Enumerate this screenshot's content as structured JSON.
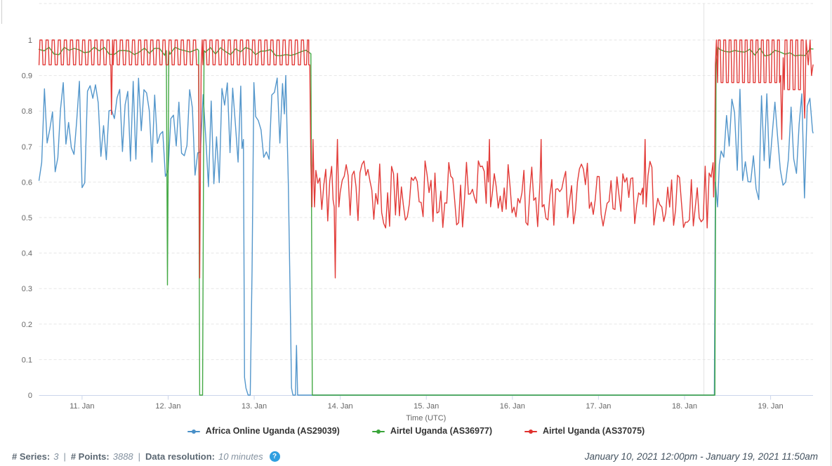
{
  "colors": {
    "blue_series": "#4a90c8",
    "green_series": "#3aa43a",
    "red_series": "#e0312e",
    "axis_line": "#ccd6eb",
    "gridline": "#e6e6e6",
    "tick_text": "#666666",
    "legend_text": "#333333",
    "footer_label": "#5c6873",
    "footer_value": "#8492a0",
    "footer_date": "#43525f",
    "help_icon_bg": "#2f9fe0",
    "divider": "#cfcfcf"
  },
  "footer": {
    "series_label": "# Series:",
    "series_value": "3",
    "points_label": "# Points:",
    "points_value": "3888",
    "resolution_label": "Data resolution:",
    "resolution_value": "10 minutes",
    "separator": "|",
    "help_glyph": "?",
    "date_range": "January 10, 2021 12:00pm - January 19, 2021 11:50am"
  },
  "chart_data": {
    "type": "line",
    "title": "",
    "xlabel": "Time (UTC)",
    "ylabel": "",
    "ylim": [
      0,
      1
    ],
    "y_ticks": [
      0,
      0.1,
      0.2,
      0.3,
      0.4,
      0.5,
      0.6,
      0.7,
      0.8,
      0.9,
      1
    ],
    "grid": "horizontal-dashed",
    "legend_position": "bottom-center",
    "time_domain": "hours since 2021-01-10 12:00 UTC, ending 2021-01-19 11:50 UTC",
    "t_end": 215.83,
    "x_ticks": [
      {
        "t": 12,
        "label": "11. Jan"
      },
      {
        "t": 36,
        "label": "12. Jan"
      },
      {
        "t": 60,
        "label": "13. Jan"
      },
      {
        "t": 84,
        "label": "14. Jan"
      },
      {
        "t": 108,
        "label": "15. Jan"
      },
      {
        "t": 132,
        "label": "16. Jan"
      },
      {
        "t": 156,
        "label": "17. Jan"
      },
      {
        "t": 180,
        "label": "18. Jan"
      },
      {
        "t": 204,
        "label": "19. Jan"
      }
    ],
    "crosshair_t": 185.4,
    "series": [
      {
        "name": "Africa Online Uganda (AS29039)",
        "slug": "africa-online-uganda-as29039",
        "color": "#4a90c8",
        "segments": [
          {
            "t": "noise",
            "t0": 0,
            "t1": 56.6,
            "lo": 0.55,
            "hi": 0.9,
            "step": 0.75,
            "seed": 3
          },
          {
            "t": "pts",
            "p": [
              [
                57.0,
                0.72
              ],
              [
                57.3,
                0.05
              ],
              [
                57.7,
                0.02
              ],
              [
                58.3,
                0.0
              ],
              [
                58.9,
                0.0
              ],
              [
                59.4,
                0.35
              ],
              [
                59.9,
                0.88
              ]
            ]
          },
          {
            "t": "noise",
            "t0": 60.4,
            "t1": 68.4,
            "lo": 0.6,
            "hi": 0.9,
            "step": 0.75,
            "seed": 5
          },
          {
            "t": "pts",
            "p": [
              [
                68.8,
                0.9
              ],
              [
                69.5,
                0.6
              ],
              [
                70.0,
                0.3
              ],
              [
                70.4,
                0.02
              ],
              [
                70.8,
                0.0
              ],
              [
                71.5,
                0.0
              ],
              [
                71.8,
                0.14
              ],
              [
                72.1,
                0.0
              ]
            ]
          },
          {
            "t": "flat",
            "t0": 72.5,
            "t1": 188.3,
            "v": 0
          },
          {
            "t": "pts",
            "p": [
              [
                188.6,
                0.6
              ],
              [
                189.2,
                0.53
              ],
              [
                189.7,
                0.65
              ]
            ]
          },
          {
            "t": "noise",
            "t0": 190.2,
            "t1": 215.83,
            "lo": 0.55,
            "hi": 0.9,
            "step": 0.75,
            "seed": 13
          }
        ]
      },
      {
        "name": "Airtel Uganda (AS36977)",
        "slug": "airtel-uganda-as36977",
        "color": "#3aa43a",
        "segments": [
          {
            "t": "noise",
            "t0": 0,
            "t1": 35.2,
            "lo": 0.955,
            "hi": 0.98,
            "step": 1.4,
            "seed": 17
          },
          {
            "t": "pts",
            "p": [
              [
                35.5,
                0.97
              ],
              [
                35.8,
                0.31
              ],
              [
                36.2,
                0.97
              ]
            ]
          },
          {
            "t": "noise",
            "t0": 36.5,
            "t1": 44.2,
            "lo": 0.955,
            "hi": 0.98,
            "step": 1.4,
            "seed": 19
          },
          {
            "t": "pts",
            "p": [
              [
                44.5,
                0.97
              ],
              [
                44.8,
                0.0
              ],
              [
                45.6,
                0.0
              ],
              [
                46.0,
                0.97
              ]
            ]
          },
          {
            "t": "noise",
            "t0": 46.4,
            "t1": 75.8,
            "lo": 0.955,
            "hi": 0.98,
            "step": 1.4,
            "seed": 29
          },
          {
            "t": "pts",
            "p": [
              [
                76.2,
                0.0
              ]
            ]
          },
          {
            "t": "flat",
            "t0": 76.2,
            "t1": 188.45,
            "v": 0
          },
          {
            "t": "pts",
            "p": [
              [
                188.8,
                0.93
              ],
              [
                189.3,
                0.98
              ]
            ]
          },
          {
            "t": "noise",
            "t0": 189.8,
            "t1": 215.83,
            "lo": 0.955,
            "hi": 0.98,
            "step": 1.4,
            "seed": 37
          }
        ]
      },
      {
        "name": "Airtel Uganda (AS37075)",
        "slug": "airtel-uganda-as37075",
        "color": "#e0312e",
        "segments": [
          {
            "t": "square",
            "t0": 0,
            "t1": 19.8,
            "lo": 0.93,
            "hi": 1.0,
            "period": 1.7
          },
          {
            "t": "pts",
            "p": [
              [
                20.0,
                0.93
              ],
              [
                20.2,
                0.79
              ],
              [
                20.5,
                1.0
              ]
            ]
          },
          {
            "t": "square",
            "t0": 20.7,
            "t1": 44.3,
            "lo": 0.93,
            "hi": 1.0,
            "period": 1.7
          },
          {
            "t": "pts",
            "p": [
              [
                44.5,
                0.93
              ],
              [
                44.8,
                0.33
              ],
              [
                45.2,
                0.93
              ],
              [
                45.5,
                1.0
              ]
            ]
          },
          {
            "t": "square",
            "t0": 45.7,
            "t1": 75.2,
            "lo": 0.93,
            "hi": 1.0,
            "period": 1.7
          },
          {
            "t": "pts",
            "p": [
              [
                75.5,
                0.93
              ],
              [
                75.8,
                0.65
              ],
              [
                76.1,
                0.53
              ],
              [
                76.4,
                0.72
              ],
              [
                76.8,
                0.53
              ]
            ]
          },
          {
            "t": "noise",
            "t0": 77.2,
            "t1": 82.0,
            "lo": 0.47,
            "hi": 0.65,
            "step": 0.55,
            "seed": 7
          },
          {
            "t": "pts",
            "p": [
              [
                82.3,
                0.53
              ],
              [
                82.6,
                0.33
              ],
              [
                82.9,
                0.6
              ],
              [
                83.2,
                0.72
              ],
              [
                83.6,
                0.53
              ]
            ]
          },
          {
            "t": "noise",
            "t0": 84.0,
            "t1": 125.0,
            "lo": 0.47,
            "hi": 0.66,
            "step": 0.55,
            "seed": 11
          },
          {
            "t": "pts",
            "p": [
              [
                125.3,
                0.6
              ],
              [
                125.6,
                0.72
              ],
              [
                125.9,
                0.53
              ]
            ]
          },
          {
            "t": "noise",
            "t0": 126.4,
            "t1": 139.4,
            "lo": 0.47,
            "hi": 0.66,
            "step": 0.55,
            "seed": 23
          },
          {
            "t": "pts",
            "p": [
              [
                139.7,
                0.6
              ],
              [
                140.0,
                0.72
              ],
              [
                140.3,
                0.53
              ]
            ]
          },
          {
            "t": "noise",
            "t0": 140.8,
            "t1": 168.4,
            "lo": 0.47,
            "hi": 0.66,
            "step": 0.55,
            "seed": 31
          },
          {
            "t": "pts",
            "p": [
              [
                168.7,
                0.6
              ],
              [
                169.0,
                0.72
              ],
              [
                169.3,
                0.53
              ]
            ]
          },
          {
            "t": "noise",
            "t0": 169.8,
            "t1": 188.1,
            "lo": 0.47,
            "hi": 0.66,
            "step": 0.55,
            "seed": 41
          },
          {
            "t": "pts",
            "p": [
              [
                188.4,
                0.65
              ],
              [
                188.6,
                0.93
              ],
              [
                188.9,
                1.0
              ]
            ]
          },
          {
            "t": "square",
            "t0": 189.2,
            "t1": 206.5,
            "lo": 0.88,
            "hi": 1.0,
            "period": 1.5
          },
          {
            "t": "pts",
            "p": [
              [
                206.8,
                0.9
              ],
              [
                207.1,
                0.72
              ],
              [
                207.5,
                0.95
              ]
            ]
          },
          {
            "t": "square",
            "t0": 207.8,
            "t1": 213.2,
            "lo": 0.86,
            "hi": 1.0,
            "period": 1.5
          },
          {
            "t": "pts",
            "p": [
              [
                213.5,
                0.78
              ],
              [
                213.9,
                1.0
              ],
              [
                214.5,
                0.93
              ],
              [
                215.0,
                1.0
              ],
              [
                215.4,
                0.9
              ],
              [
                215.83,
                0.93
              ]
            ]
          }
        ]
      }
    ]
  }
}
